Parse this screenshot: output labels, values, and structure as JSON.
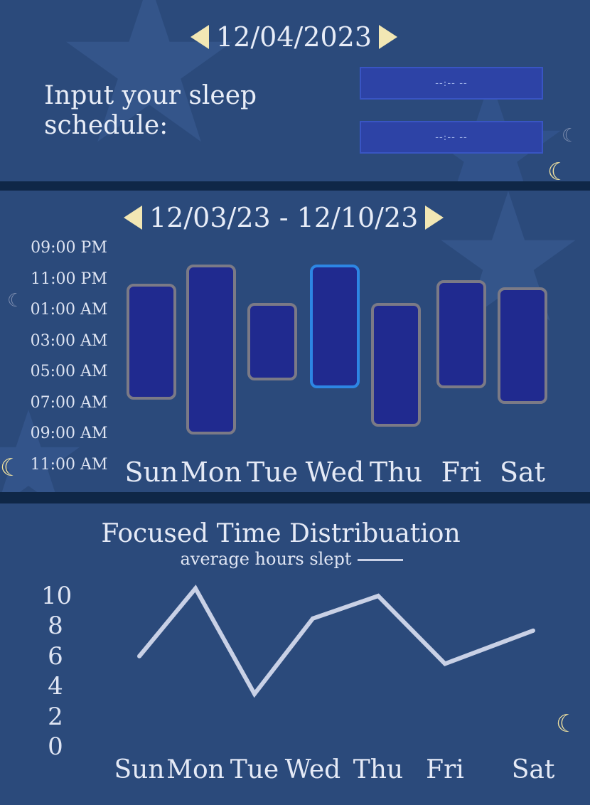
{
  "day_view": {
    "date": "12/04/2023",
    "prompt": "Input your sleep schedule:",
    "sleep_start": {
      "placeholder": "--:-- --"
    },
    "sleep_end": {
      "placeholder": "--:-- --"
    }
  },
  "week_view": {
    "range": "12/03/23 - 12/10/23",
    "time_labels": [
      "09:00 PM",
      "11:00 PM",
      "01:00 AM",
      "03:00 AM",
      "05:00 AM",
      "07:00 AM",
      "09:00 AM",
      "11:00 AM"
    ],
    "days": [
      "Sun",
      "Mon",
      "Tue",
      "Wed",
      "Thu",
      "Fri",
      "Sat"
    ],
    "selected_day": "Wed",
    "bars": [
      {
        "day": "Sun",
        "start": "11:15 PM",
        "end": "06:45 AM"
      },
      {
        "day": "Mon",
        "start": "10:00 PM",
        "end": "09:00 AM"
      },
      {
        "day": "Tue",
        "start": "12:30 AM",
        "end": "05:30 AM"
      },
      {
        "day": "Wed",
        "start": "10:00 PM",
        "end": "06:00 AM"
      },
      {
        "day": "Thu",
        "start": "12:30 AM",
        "end": "08:30 AM"
      },
      {
        "day": "Fri",
        "start": "11:00 PM",
        "end": "06:00 AM"
      },
      {
        "day": "Sat",
        "start": "11:30 PM",
        "end": "07:00 AM"
      }
    ],
    "colors": {
      "bar": "#202a8f",
      "bar_border": "#7b7a86",
      "selected_border": "#2d86e4"
    }
  },
  "chart_data": {
    "type": "line",
    "title": "Focused Time Distribuation",
    "series": [
      {
        "name": "average hours slept",
        "values": [
          6,
          10.5,
          3.5,
          8.5,
          10,
          5.5,
          7.7
        ]
      }
    ],
    "categories": [
      "Sun",
      "Mon",
      "Tue",
      "Wed",
      "Thu",
      "Fri",
      "Sat"
    ],
    "yticks": [
      10,
      8,
      6,
      4,
      2,
      0
    ],
    "ylim": [
      0,
      10
    ],
    "grid": false,
    "legend": "top",
    "line_color": "#c9d1e6"
  },
  "theme": {
    "panel": "#2b4a7b",
    "background": "#0f2747",
    "arrow": "#f2e7b4",
    "moon": "#f2e3a0"
  },
  "icons": {
    "prev": "triangle-left-icon",
    "next": "triangle-right-icon",
    "moon": "crescent-moon-icon"
  }
}
